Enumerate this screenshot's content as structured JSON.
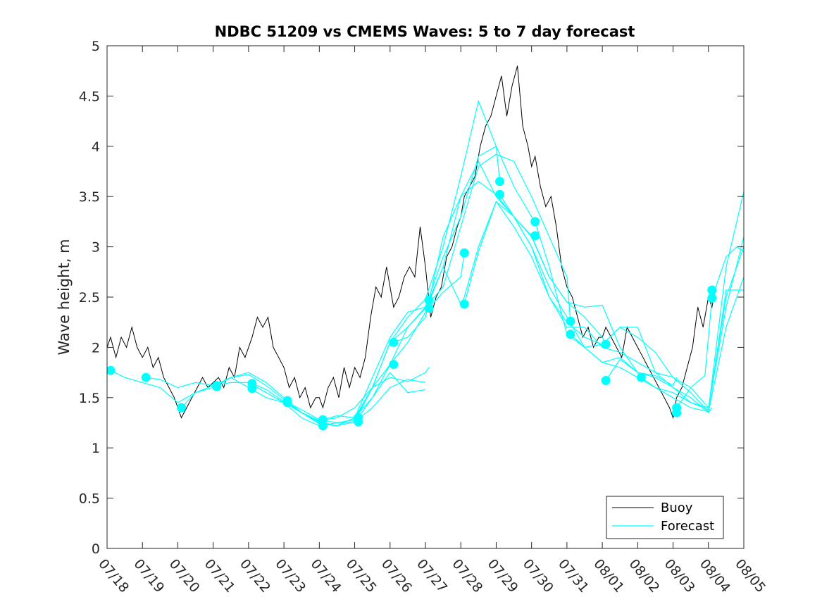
{
  "chart_data": {
    "type": "line",
    "title": "NDBC 51209 vs CMEMS Waves: 5 to 7 day forecast",
    "xlabel": "",
    "ylabel": "Wave height, m",
    "x_tick_labels": [
      "07/18",
      "07/19",
      "07/20",
      "07/21",
      "07/22",
      "07/23",
      "07/24",
      "07/25",
      "07/26",
      "07/27",
      "07/28",
      "07/29",
      "07/30",
      "07/31",
      "08/01",
      "08/02",
      "08/03",
      "08/04",
      "08/05"
    ],
    "xlim": [
      0,
      18
    ],
    "ylim": [
      0,
      5
    ],
    "y_ticks": [
      0,
      0.5,
      1,
      1.5,
      2,
      2.5,
      3,
      3.5,
      4,
      4.5,
      5
    ],
    "y_tick_labels": [
      "0",
      "0.5",
      "1",
      "1.5",
      "2",
      "2.5",
      "3",
      "3.5",
      "4",
      "4.5",
      "5"
    ],
    "grid": false,
    "legend": {
      "position": "bottom-right",
      "entries": [
        "Buoy",
        "Forecast"
      ]
    },
    "colors": {
      "buoy": "#000000",
      "forecast": "#00ffff",
      "axis": "#262626"
    },
    "buoy_series": {
      "name": "Buoy",
      "x": [
        0,
        0.1,
        0.25,
        0.4,
        0.55,
        0.7,
        0.85,
        1.0,
        1.15,
        1.3,
        1.45,
        1.6,
        1.75,
        1.9,
        2.0,
        2.1,
        2.25,
        2.4,
        2.55,
        2.7,
        2.85,
        3.0,
        3.15,
        3.3,
        3.45,
        3.6,
        3.75,
        3.9,
        4.0,
        4.1,
        4.25,
        4.4,
        4.55,
        4.7,
        4.85,
        5.0,
        5.15,
        5.3,
        5.45,
        5.6,
        5.75,
        5.9,
        6.0,
        6.1,
        6.25,
        6.4,
        6.55,
        6.7,
        6.85,
        7.0,
        7.15,
        7.3,
        7.45,
        7.6,
        7.75,
        7.9,
        8.0,
        8.1,
        8.25,
        8.4,
        8.55,
        8.7,
        8.85,
        9.0,
        9.15,
        9.3,
        9.45,
        9.6,
        9.75,
        9.9,
        10.0,
        10.1,
        10.25,
        10.4,
        10.55,
        10.7,
        10.85,
        11.0,
        11.15,
        11.3,
        11.45,
        11.6,
        11.75,
        11.9,
        12.0,
        12.1,
        12.25,
        12.4,
        12.55,
        12.7,
        12.85,
        13.0,
        13.15,
        13.3,
        13.45,
        13.6,
        13.75,
        13.9,
        14.0,
        14.1,
        14.25,
        14.4,
        14.55,
        14.7,
        14.85,
        15.0,
        15.15,
        15.3,
        15.45,
        15.6,
        15.75,
        15.9,
        16.0,
        16.1,
        16.25,
        16.4,
        16.55,
        16.7,
        16.85,
        17.0,
        17.1,
        17.2
      ],
      "y": [
        2.0,
        2.1,
        1.9,
        2.1,
        2.0,
        2.2,
        2.0,
        1.9,
        2.0,
        1.8,
        1.9,
        1.7,
        1.6,
        1.5,
        1.4,
        1.3,
        1.4,
        1.5,
        1.6,
        1.7,
        1.6,
        1.65,
        1.7,
        1.6,
        1.8,
        1.7,
        2.0,
        1.9,
        2.0,
        2.1,
        2.3,
        2.2,
        2.3,
        2.0,
        1.9,
        1.8,
        1.6,
        1.7,
        1.5,
        1.6,
        1.4,
        1.5,
        1.5,
        1.4,
        1.6,
        1.7,
        1.5,
        1.8,
        1.6,
        1.8,
        1.7,
        1.9,
        2.3,
        2.6,
        2.5,
        2.8,
        2.6,
        2.4,
        2.5,
        2.7,
        2.8,
        2.7,
        3.2,
        2.8,
        2.3,
        2.5,
        2.6,
        2.9,
        3.0,
        3.2,
        3.3,
        3.5,
        3.6,
        3.7,
        4.0,
        4.2,
        4.3,
        4.5,
        4.7,
        4.3,
        4.6,
        4.8,
        4.2,
        4.0,
        3.8,
        3.9,
        3.6,
        3.4,
        3.5,
        3.2,
        2.8,
        2.6,
        2.5,
        2.3,
        2.1,
        2.2,
        2.0,
        2.1,
        2.1,
        2.2,
        2.1,
        2.0,
        1.9,
        2.2,
        2.1,
        2.0,
        1.9,
        1.8,
        1.7,
        1.6,
        1.5,
        1.4,
        1.3,
        1.5,
        1.6,
        1.8,
        2.0,
        2.4,
        2.2,
        2.5,
        2.4,
        2.6
      ]
    },
    "forecast_series": [
      {
        "name": "Forecast",
        "x": [
          0.1,
          0.5,
          1.0,
          1.5,
          2.0,
          2.5,
          3.0,
          3.5,
          4.0,
          4.5,
          5.0,
          5.5,
          6.0,
          6.5,
          7.0,
          7.5,
          8.0,
          8.5,
          9.0,
          9.1
        ],
        "y": [
          1.77,
          1.7,
          1.65,
          1.6,
          1.45,
          1.55,
          1.62,
          1.7,
          1.73,
          1.62,
          1.48,
          1.35,
          1.27,
          1.3,
          1.4,
          1.6,
          1.7,
          1.66,
          1.75,
          1.8
        ]
      },
      {
        "name": "Forecast",
        "x": [
          1.1,
          1.5,
          2.0,
          2.5,
          3.0,
          3.5,
          4.0,
          4.5,
          5.0,
          5.5,
          6.0,
          6.5,
          7.0,
          7.5,
          8.0,
          8.5,
          9.0
        ],
        "y": [
          1.7,
          1.68,
          1.6,
          1.65,
          1.62,
          1.65,
          1.65,
          1.55,
          1.45,
          1.35,
          1.24,
          1.22,
          1.26,
          1.4,
          1.6,
          1.68,
          1.65
        ]
      },
      {
        "name": "Forecast",
        "x": [
          2.1,
          2.5,
          3.0,
          3.5,
          4.0,
          4.5,
          5.0,
          5.5,
          6.0,
          6.5,
          7.0,
          7.5,
          8.0,
          8.5,
          9.0
        ],
        "y": [
          1.4,
          1.55,
          1.6,
          1.7,
          1.75,
          1.65,
          1.5,
          1.35,
          1.25,
          1.22,
          1.3,
          1.5,
          1.75,
          1.55,
          1.58
        ]
      },
      {
        "name": "Forecast",
        "x": [
          3.1,
          3.5,
          4.0,
          4.5,
          5.0,
          5.5,
          6.0,
          6.5,
          7.0,
          7.5,
          8.0,
          8.5,
          9.0,
          9.5,
          10.0,
          10.1
        ],
        "y": [
          1.62,
          1.7,
          1.6,
          1.5,
          1.45,
          1.3,
          1.22,
          1.25,
          1.26,
          1.6,
          1.83,
          2.05,
          2.35,
          2.55,
          2.7,
          2.94
        ]
      },
      {
        "name": "Forecast",
        "x": [
          4.1,
          4.5,
          5.0,
          5.5,
          6.0,
          6.5,
          7.0,
          7.5,
          8.0,
          8.5,
          9.0,
          9.5,
          10.0,
          10.5,
          11.0,
          11.1
        ],
        "y": [
          1.64,
          1.58,
          1.46,
          1.35,
          1.26,
          1.22,
          1.3,
          1.6,
          2.05,
          2.2,
          2.4,
          2.9,
          3.3,
          3.9,
          4.0,
          3.65
        ]
      },
      {
        "name": "Forecast",
        "x": [
          5.1,
          5.5,
          6.0,
          6.5,
          7.0,
          7.5,
          8.0,
          8.5,
          9.0,
          9.5,
          10.0,
          10.5,
          11.0,
          11.5,
          12.0,
          12.1
        ],
        "y": [
          1.45,
          1.38,
          1.28,
          1.25,
          1.28,
          1.6,
          2.05,
          2.3,
          2.48,
          3.0,
          3.7,
          4.45,
          4.0,
          3.6,
          3.3,
          3.25
        ]
      },
      {
        "name": "Forecast",
        "x": [
          6.1,
          6.5,
          7.0,
          7.5,
          8.0,
          8.5,
          9.0,
          9.5,
          10.0,
          10.5,
          11.0,
          11.5,
          12.0,
          12.5,
          13.0,
          13.1
        ],
        "y": [
          1.28,
          1.32,
          1.3,
          1.7,
          2.1,
          2.35,
          2.4,
          2.6,
          3.2,
          3.8,
          3.92,
          3.85,
          3.5,
          3.1,
          2.7,
          2.26
        ]
      },
      {
        "name": "Forecast",
        "x": [
          7.1,
          7.5,
          8.0,
          8.5,
          9.0,
          9.5,
          10.0,
          10.5,
          11.0,
          11.5,
          12.0,
          12.5,
          13.0,
          13.5,
          14.0,
          14.1
        ],
        "y": [
          1.3,
          1.5,
          1.83,
          2.2,
          2.39,
          2.8,
          3.5,
          3.85,
          3.5,
          3.3,
          3.11,
          2.7,
          2.45,
          2.3,
          2.1,
          2.03
        ]
      },
      {
        "name": "Forecast",
        "x": [
          8.1,
          8.5,
          9.0,
          9.5,
          10.0,
          10.5,
          11.0,
          11.5,
          12.0,
          12.5,
          13.0,
          13.5,
          14.0,
          14.5,
          15.0,
          15.1
        ],
        "y": [
          2.05,
          2.1,
          2.3,
          3.1,
          3.5,
          3.65,
          3.52,
          3.3,
          3.1,
          2.7,
          2.45,
          2.4,
          2.42,
          2.0,
          1.75,
          1.67
        ]
      },
      {
        "name": "Forecast",
        "x": [
          9.1,
          9.5,
          10.0,
          10.1,
          10.5,
          11.0,
          11.5,
          12.0,
          12.5,
          13.0,
          13.5,
          14.0,
          14.5,
          15.0,
          15.5,
          16.0,
          16.1
        ],
        "y": [
          2.45,
          2.8,
          2.43,
          2.5,
          3.0,
          3.45,
          3.3,
          3.0,
          2.6,
          2.3,
          2.0,
          1.85,
          1.9,
          1.75,
          1.72,
          1.62,
          1.7
        ]
      },
      {
        "name": "Forecast",
        "x": [
          10.1,
          10.5,
          11.0,
          11.5,
          12.0,
          12.5,
          13.0,
          13.5,
          14.0,
          14.5,
          15.0,
          15.5,
          16.0,
          16.5,
          17.0,
          17.1
        ],
        "y": [
          2.43,
          2.95,
          3.45,
          3.2,
          2.9,
          2.5,
          2.2,
          2.2,
          2.0,
          1.95,
          1.85,
          1.75,
          1.6,
          1.5,
          1.35,
          1.4
        ]
      },
      {
        "name": "Forecast",
        "x": [
          11.1,
          11.5,
          12.0,
          12.5,
          13.0,
          13.5,
          14.0,
          14.5,
          15.0,
          15.5,
          16.0,
          16.5,
          17.0,
          17.5,
          18.0
        ],
        "y": [
          3.52,
          3.3,
          3.0,
          2.5,
          2.25,
          2.1,
          2.03,
          2.2,
          2.1,
          1.95,
          1.7,
          1.6,
          1.4,
          2.5,
          3.0
        ]
      },
      {
        "name": "Forecast",
        "x": [
          12.1,
          12.5,
          13.0,
          13.5,
          14.0,
          14.5,
          15.0,
          15.5,
          16.0,
          16.5,
          17.0,
          17.5,
          18.0
        ],
        "y": [
          3.25,
          2.8,
          2.13,
          2.0,
          2.03,
          2.2,
          2.2,
          1.75,
          1.7,
          1.55,
          1.36,
          2.2,
          2.7
        ]
      },
      {
        "name": "Forecast",
        "x": [
          13.1,
          13.5,
          14.0,
          14.5,
          15.0,
          15.5,
          16.0,
          16.5,
          17.0,
          17.5,
          18.0
        ],
        "y": [
          2.13,
          2.0,
          1.85,
          1.8,
          1.7,
          1.6,
          1.55,
          1.45,
          1.4,
          2.4,
          3.1
        ]
      },
      {
        "name": "Forecast",
        "x": [
          14.1,
          14.5,
          15.0,
          15.5,
          16.0,
          16.5,
          17.0,
          17.5,
          18.0
        ],
        "y": [
          1.67,
          1.88,
          1.75,
          1.7,
          1.6,
          1.45,
          1.38,
          2.8,
          3.55
        ]
      },
      {
        "name": "Forecast",
        "x": [
          15.1,
          15.5,
          16.0,
          16.5,
          17.0,
          17.5,
          18.0
        ],
        "y": [
          1.7,
          1.6,
          1.5,
          1.4,
          1.36,
          2.57,
          2.57
        ]
      },
      {
        "name": "Forecast",
        "x": [
          16.1,
          16.5,
          16.9,
          17.1,
          17.5,
          17.8,
          18.0
        ],
        "y": [
          1.4,
          1.6,
          1.72,
          2.49,
          2.9,
          3.0,
          2.95
        ]
      }
    ],
    "markers": [
      {
        "x": 0.1,
        "y": 1.77
      },
      {
        "x": 1.1,
        "y": 1.7
      },
      {
        "x": 2.1,
        "y": 1.4
      },
      {
        "x": 3.1,
        "y": 1.62
      },
      {
        "x": 3.1,
        "y": 1.61
      },
      {
        "x": 4.1,
        "y": 1.64
      },
      {
        "x": 4.1,
        "y": 1.59
      },
      {
        "x": 5.1,
        "y": 1.47
      },
      {
        "x": 5.1,
        "y": 1.45
      },
      {
        "x": 6.1,
        "y": 1.28
      },
      {
        "x": 6.1,
        "y": 1.22
      },
      {
        "x": 7.1,
        "y": 1.3
      },
      {
        "x": 7.1,
        "y": 1.26
      },
      {
        "x": 8.1,
        "y": 2.05
      },
      {
        "x": 8.1,
        "y": 1.83
      },
      {
        "x": 9.1,
        "y": 2.47
      },
      {
        "x": 9.1,
        "y": 2.39
      },
      {
        "x": 10.1,
        "y": 2.94
      },
      {
        "x": 10.1,
        "y": 2.43
      },
      {
        "x": 11.1,
        "y": 3.65
      },
      {
        "x": 11.1,
        "y": 3.52
      },
      {
        "x": 12.1,
        "y": 3.25
      },
      {
        "x": 12.1,
        "y": 3.11
      },
      {
        "x": 13.1,
        "y": 2.26
      },
      {
        "x": 13.1,
        "y": 2.13
      },
      {
        "x": 14.1,
        "y": 2.03
      },
      {
        "x": 14.1,
        "y": 1.67
      },
      {
        "x": 15.1,
        "y": 1.7
      },
      {
        "x": 16.1,
        "y": 1.4
      },
      {
        "x": 16.1,
        "y": 1.35
      },
      {
        "x": 17.1,
        "y": 2.57
      },
      {
        "x": 17.1,
        "y": 2.49
      }
    ]
  }
}
